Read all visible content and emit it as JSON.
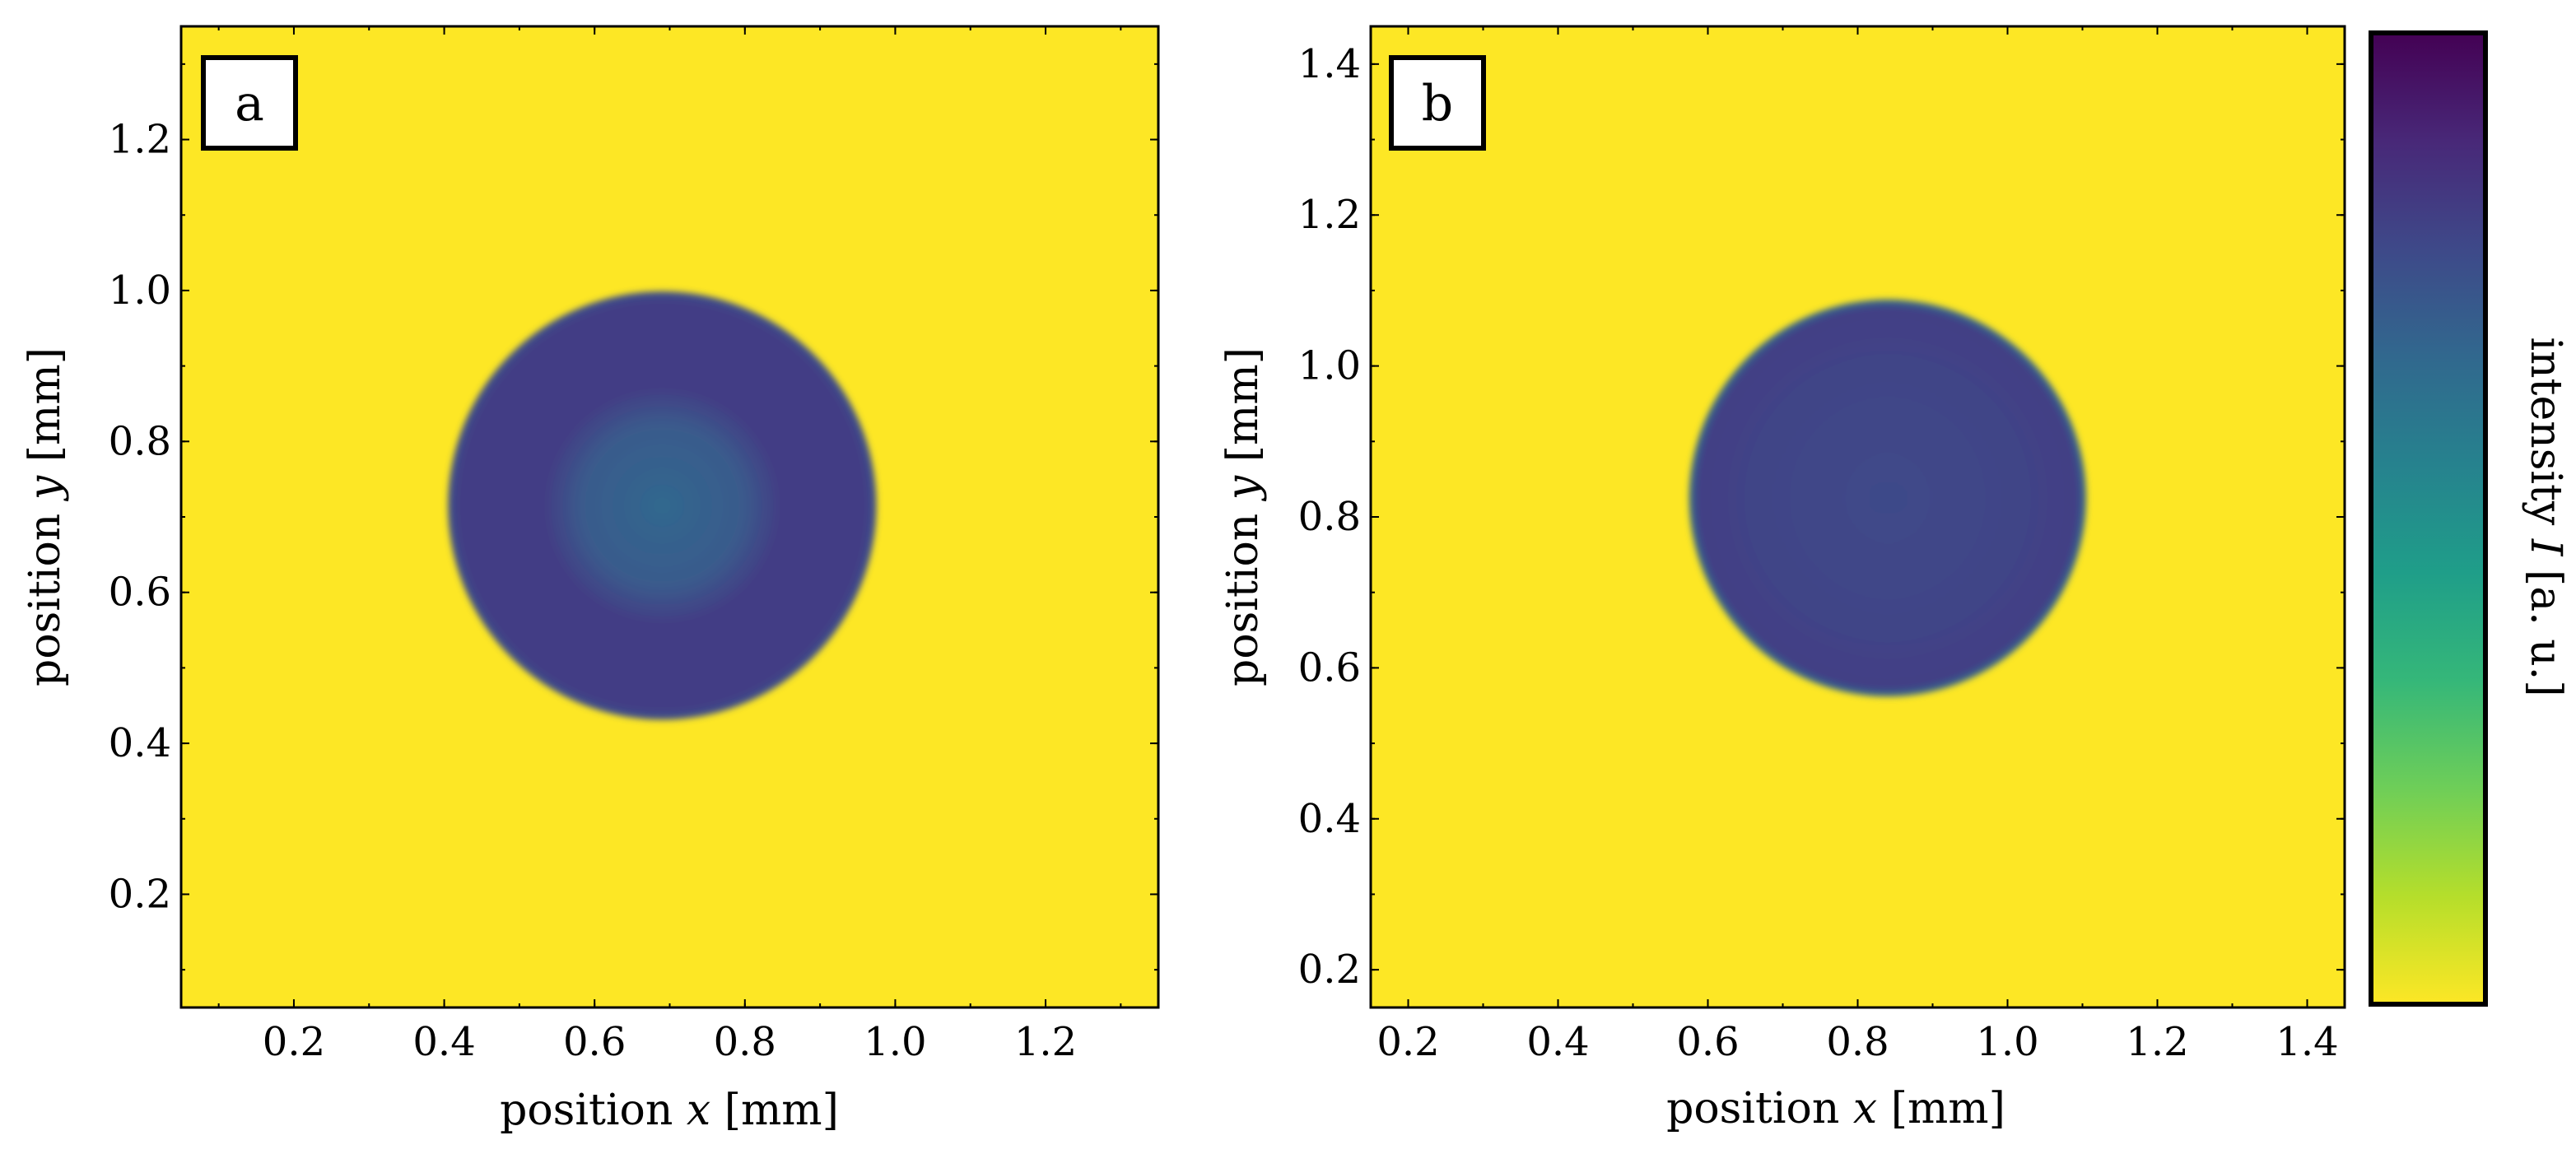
{
  "chart_data": [
    {
      "type": "heatmap",
      "panel_label": "a",
      "xlabel_prefix": "position ",
      "xlabel_var": "x",
      "xlabel_suffix": " [mm]",
      "ylabel_prefix": "position ",
      "ylabel_var": "y",
      "ylabel_suffix": " [mm]",
      "xlim": [
        0.05,
        1.35
      ],
      "ylim": [
        0.05,
        1.35
      ],
      "xticks": [
        0.2,
        0.4,
        0.6,
        0.8,
        1.0,
        1.2
      ],
      "yticks": [
        0.2,
        0.4,
        0.6,
        0.8,
        1.0,
        1.2
      ],
      "xtick_labels": [
        "0.2",
        "0.4",
        "0.6",
        "0.8",
        "1.0",
        "1.2"
      ],
      "ytick_labels": [
        "0.2",
        "0.4",
        "0.6",
        "0.8",
        "1.0",
        "1.2"
      ],
      "background_color": "#fde725",
      "spot": {
        "center_x": 0.69,
        "center_y": 0.715,
        "radius": 0.285,
        "inner_radius": 0.14,
        "edge_color": "#3b528b",
        "body_color": "#433e85",
        "inner_color": "#31688e"
      }
    },
    {
      "type": "heatmap",
      "panel_label": "b",
      "xlabel_prefix": "position ",
      "xlabel_var": "x",
      "xlabel_suffix": " [mm]",
      "ylabel_prefix": "position ",
      "ylabel_var": "y",
      "ylabel_suffix": " [mm]",
      "xlim": [
        0.15,
        1.45
      ],
      "ylim": [
        0.15,
        1.45
      ],
      "xticks": [
        0.2,
        0.4,
        0.6,
        0.8,
        1.0,
        1.2,
        1.4
      ],
      "yticks": [
        0.2,
        0.4,
        0.6,
        0.8,
        1.0,
        1.2,
        1.4
      ],
      "xtick_labels": [
        "0.2",
        "0.4",
        "0.6",
        "0.8",
        "1.0",
        "1.2",
        "1.4"
      ],
      "ytick_labels": [
        "0.2",
        "0.4",
        "0.6",
        "0.8",
        "1.0",
        "1.2",
        "1.4"
      ],
      "background_color": "#fde725",
      "spot": {
        "center_x": 0.84,
        "center_y": 0.825,
        "radius": 0.265,
        "inner_radius": 0.0,
        "edge_color": "#3b528b",
        "body_color": "#414487",
        "inner_color": "#3a5a8c"
      }
    }
  ],
  "colorbar": {
    "label_prefix": "intensity ",
    "label_var": "I",
    "label_suffix": " [a. u.]",
    "colormap": "viridis",
    "colors": [
      "#fde725",
      "#b5de2b",
      "#6ece58",
      "#35b779",
      "#1f9e89",
      "#26828e",
      "#31688e",
      "#3e4989",
      "#482878",
      "#440154"
    ]
  }
}
